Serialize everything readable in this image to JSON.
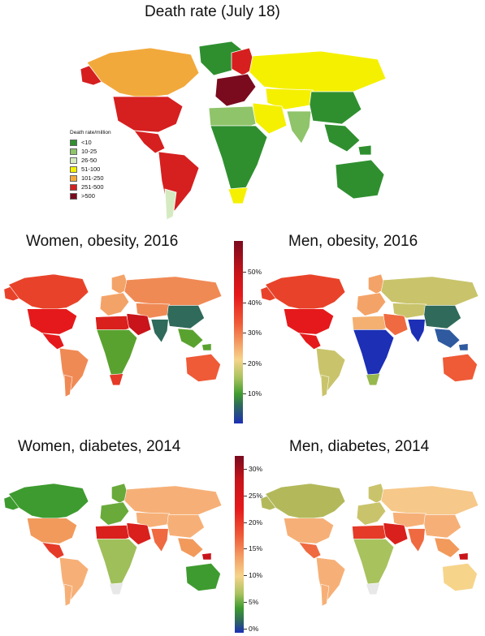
{
  "titles": {
    "death": "Death rate (July 18)",
    "women_obesity": "Women, obesity, 2016",
    "men_obesity": "Men, obesity, 2016",
    "women_diabetes": "Women, diabetes, 2014",
    "men_diabetes": "Men, diabetes, 2014"
  },
  "legend": {
    "title": "Death rate/million",
    "items": [
      {
        "label": "<10",
        "color": "#2f8f2f"
      },
      {
        "label": "10-25",
        "color": "#8fc46a"
      },
      {
        "label": "26-50",
        "color": "#d6eac2"
      },
      {
        "label": "51-100",
        "color": "#f5f000"
      },
      {
        "label": "101-250",
        "color": "#f2a93b"
      },
      {
        "label": "251-500",
        "color": "#d61f1f"
      },
      {
        "label": ">500",
        "color": "#7a0a1e"
      }
    ]
  },
  "obesity_colorbar": {
    "ticks": [
      "50%",
      "40%",
      "30%",
      "20%",
      "10%"
    ]
  },
  "diabetes_colorbar": {
    "ticks": [
      "30%",
      "25%",
      "20%",
      "15%",
      "10%",
      "5%",
      "0%"
    ]
  },
  "colors": {
    "death": {
      "north_america": "#f2a93b",
      "usa": "#d61f1f",
      "alaska": "#d61f1f",
      "greenland": "#2f8f2f",
      "central_america": "#d61f1f",
      "south_america": "#d61f1f",
      "south_america_south": "#d6eac2",
      "europe": "#7a0a1e",
      "scandinavia": "#d61f1f",
      "russia": "#f5f000",
      "africa": "#2f8f2f",
      "north_africa": "#8fc46a",
      "middle_east": "#f5f000",
      "india": "#8fc46a",
      "china": "#2f8f2f",
      "southeast_asia": "#2f8f2f",
      "australia": "#2f8f2f",
      "south_africa": "#f5f000"
    },
    "women_obesity": {
      "north_america": "#e8432a",
      "usa": "#e5191b",
      "greenland": "#ffffff",
      "south_america": "#f08a55",
      "europe": "#f4a368",
      "russia": "#f08a55",
      "north_africa": "#d9201c",
      "africa": "#5aa22f",
      "south_africa": "#e53a28",
      "middle_east": "#c8141a",
      "central_asia": "#f08a55",
      "india": "#2f6a5a",
      "china": "#2f6a5a",
      "southeast_asia": "#5aa22f",
      "australia": "#ef5a37"
    },
    "men_obesity": {
      "north_america": "#e8432a",
      "usa": "#e5191b",
      "greenland": "#ffffff",
      "south_america": "#c9c46b",
      "europe": "#f4a368",
      "russia": "#c9c46b",
      "north_africa": "#f4b070",
      "africa": "#1c2fb5",
      "south_africa": "#97b84d",
      "middle_east": "#ef6a40",
      "central_asia": "#c9c46b",
      "india": "#1c2fb5",
      "china": "#2f6a5a",
      "southeast_asia": "#2f5aa0",
      "australia": "#ef5a37"
    },
    "women_diabetes": {
      "north_america": "#3e9b2f",
      "usa": "#f29a5c",
      "greenland": "#ffffff",
      "central_america": "#e53a28",
      "south_america": "#f6b077",
      "europe": "#6aaa3b",
      "russia": "#f6b077",
      "north_africa": "#d9201c",
      "africa": "#9fbf5a",
      "middle_east": "#d9201c",
      "central_asia": "#f6b077",
      "india": "#ef6a40",
      "china": "#f6b077",
      "southeast_asia": "#f29a5c",
      "australia": "#3e9b2f",
      "png": "#c8141a"
    },
    "men_diabetes": {
      "north_america": "#b3b95a",
      "usa": "#f6b077",
      "greenland": "#ffffff",
      "central_america": "#ef6a40",
      "south_america": "#f6b077",
      "europe": "#c9c46b",
      "russia": "#f6c88a",
      "north_africa": "#e53a28",
      "africa": "#a8c25e",
      "middle_east": "#d9201c",
      "central_asia": "#f6b077",
      "india": "#ef6a40",
      "china": "#f6b077",
      "southeast_asia": "#f29a5c",
      "australia": "#f6d48a",
      "png": "#c8141a"
    }
  }
}
